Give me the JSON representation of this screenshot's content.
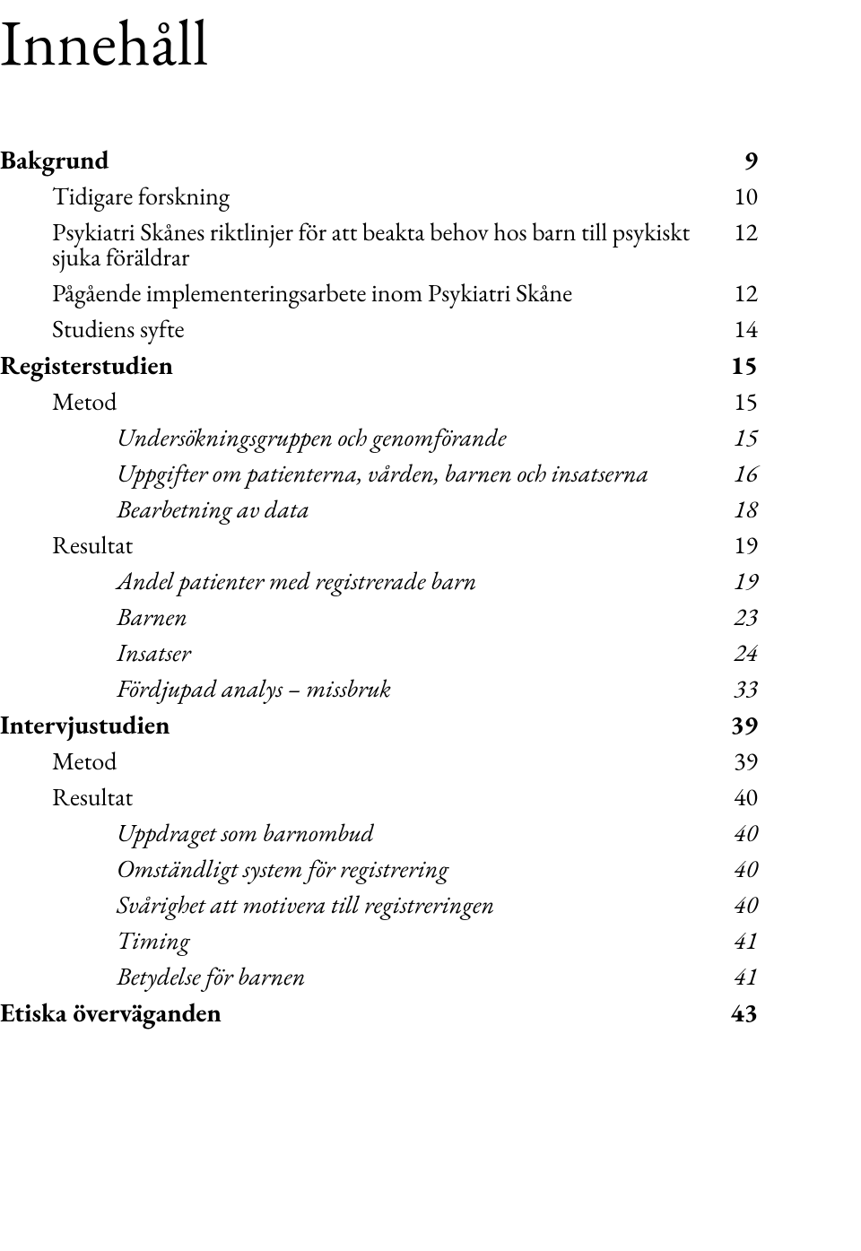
{
  "title": "Innehåll",
  "toc": [
    {
      "level": 0,
      "label": "Bakgrund",
      "page": "9"
    },
    {
      "level": 1,
      "label": "Tidigare forskning",
      "page": "10"
    },
    {
      "level": 1,
      "label": "Psykiatri Skånes riktlinjer för att beakta behov hos barn till psykiskt sjuka föräldrar",
      "page": "12"
    },
    {
      "level": 1,
      "label": "Pågående implementeringsarbete inom Psykiatri Skåne",
      "page": "12"
    },
    {
      "level": 1,
      "label": "Studiens syfte",
      "page": "14"
    },
    {
      "level": 0,
      "label": "Registerstudien",
      "page": "15",
      "gap": "med"
    },
    {
      "level": 1,
      "label": "Metod",
      "page": "15"
    },
    {
      "level": 2,
      "label": "Undersökningsgruppen och genomförande",
      "page": "15"
    },
    {
      "level": 2,
      "label": "Uppgifter om patienterna, vården, barnen och insatserna",
      "page": "16"
    },
    {
      "level": 2,
      "label": "Bearbetning av data",
      "page": "18"
    },
    {
      "level": 1,
      "label": "Resultat",
      "page": "19"
    },
    {
      "level": 2,
      "label": "Andel patienter med registrerade barn",
      "page": "19"
    },
    {
      "level": 2,
      "label": "Barnen",
      "page": "23"
    },
    {
      "level": 2,
      "label": "Insatser",
      "page": "24"
    },
    {
      "level": 2,
      "label": "Fördjupad analys – missbruk",
      "page": "33"
    },
    {
      "level": 0,
      "label": "Intervjustudien",
      "page": "39",
      "gap": "med"
    },
    {
      "level": 1,
      "label": "Metod",
      "page": "39"
    },
    {
      "level": 1,
      "label": "Resultat",
      "page": "40"
    },
    {
      "level": 2,
      "label": "Uppdraget som barnombud",
      "page": "40"
    },
    {
      "level": 2,
      "label": "Omständligt system för registrering",
      "page": "40"
    },
    {
      "level": 2,
      "label": "Svårighet att motivera till registreringen",
      "page": "40"
    },
    {
      "level": 2,
      "label": "Timing",
      "page": "41"
    },
    {
      "level": 2,
      "label": "Betydelse för barnen",
      "page": "41"
    },
    {
      "level": 0,
      "label": "Etiska överväganden",
      "page": "43",
      "gap": "med"
    }
  ]
}
